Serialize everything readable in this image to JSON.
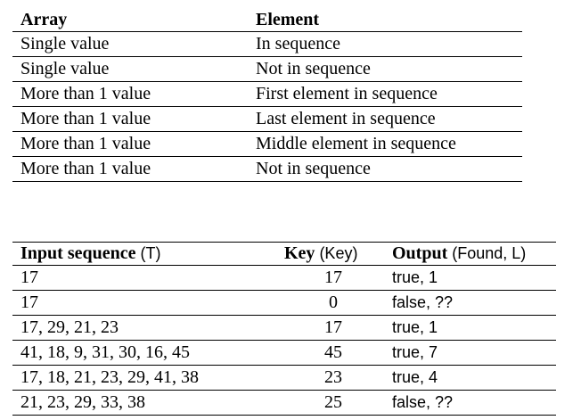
{
  "table1": {
    "headers": [
      "Array",
      "Element"
    ],
    "rows": [
      [
        "Single value",
        "In sequence"
      ],
      [
        "Single value",
        "Not in sequence"
      ],
      [
        "More than 1 value",
        "First element in sequence"
      ],
      [
        "More than 1 value",
        "Last element in sequence"
      ],
      [
        "More than 1 value",
        "Middle element in sequence"
      ],
      [
        "More than 1 value",
        "Not in sequence"
      ]
    ]
  },
  "table2": {
    "headers": [
      {
        "bold": "Input sequence",
        "rest": " (T)"
      },
      {
        "bold": "Key",
        "rest": " (Key)"
      },
      {
        "bold": "Output",
        "rest": " (Found, L)"
      }
    ],
    "rows": [
      [
        "17",
        "17",
        "true, 1"
      ],
      [
        "17",
        "0",
        "false, ??"
      ],
      [
        "17, 29, 21, 23",
        "17",
        "true, 1"
      ],
      [
        "41, 18, 9, 31, 30, 16, 45",
        "45",
        "true, 7"
      ],
      [
        "17, 18, 21, 23, 29, 41, 38",
        "23",
        "true, 4"
      ],
      [
        "21, 23, 29, 33, 38",
        "25",
        "false, ??"
      ]
    ]
  }
}
